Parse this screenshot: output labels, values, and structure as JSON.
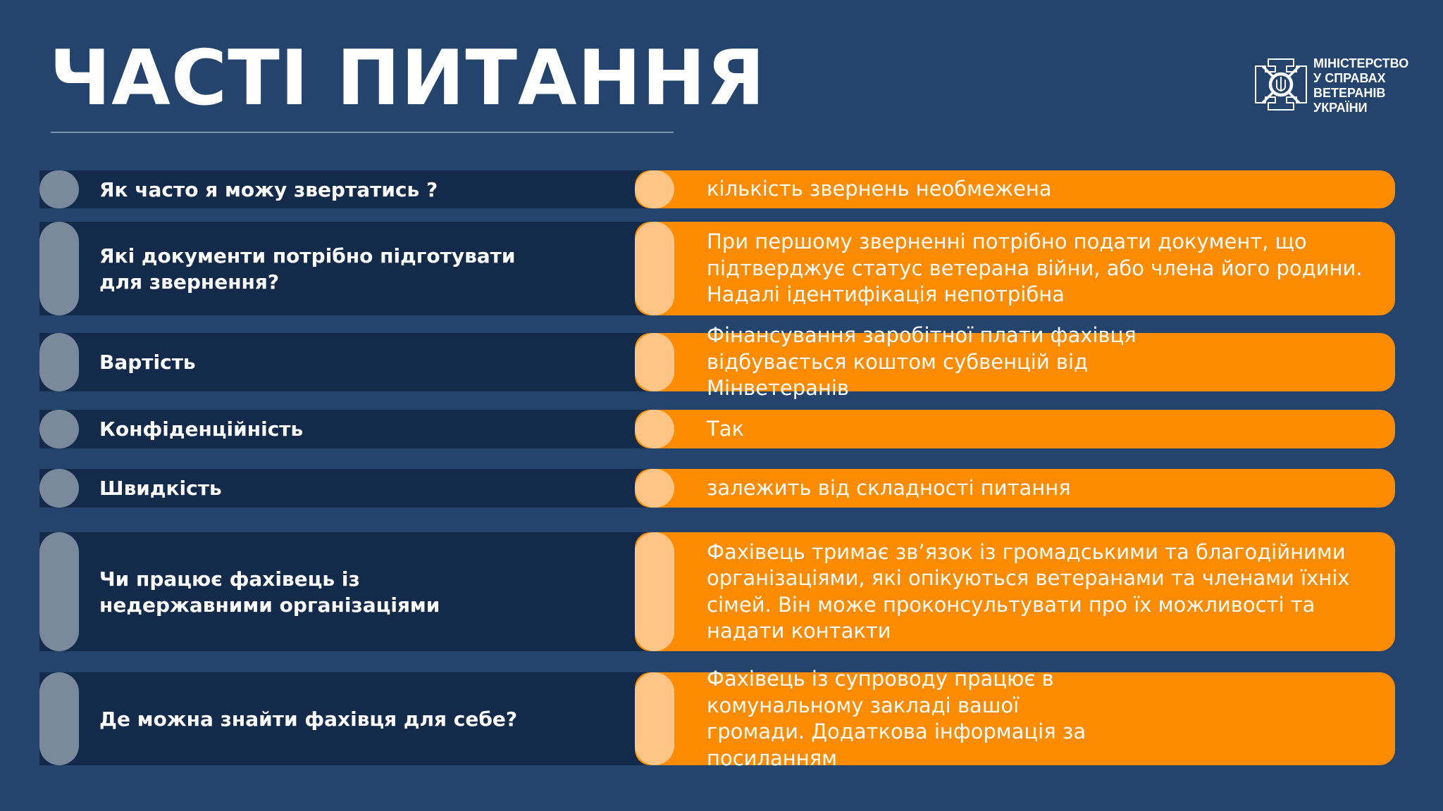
{
  "header": {
    "title": "ЧАСТІ ПИТАННЯ"
  },
  "logo": {
    "lines": [
      "МІНІСТЕРСТВО",
      "У СПРАВАХ",
      "ВЕТЕРАНІВ",
      "УКРАЇНИ"
    ]
  },
  "colors": {
    "background": "#24446e",
    "question_bar": "#132a4b",
    "question_pill": "#7a8a9c",
    "answer_bar": "#ff8b00",
    "answer_pill": "#ffc587"
  },
  "faq": [
    {
      "q": "Як часто я можу звертатись ?",
      "a": "кількість звернень необмежена"
    },
    {
      "q": "Які документи потрібно підготувати для звернення?",
      "a": "При першому зверненні потрібно подати документ, що підтверджує статус ветерана війни, або члена його родини. Надалі ідентифікація непотрібна"
    },
    {
      "q": "Вартість",
      "a": "Фінансування заробітної плати фахівця відбувається коштом субвенцій від Мінветеранів"
    },
    {
      "q": "Конфіденційність",
      "a": "Так"
    },
    {
      "q": "Швидкість",
      "a": "залежить від складності питання"
    },
    {
      "q": "Чи працює фахівець із недержавними організаціями",
      "a": "Фахівець тримає зв’язок із громадськими та благодійними організаціями, які опікуються ветеранами та членами їхніх сімей. Він може проконсультувати про їх можливості та надати контакти"
    },
    {
      "q": "Де можна знайти фахівця для себе?",
      "a": "Фахівець із супроводу працює в комунальному закладі вашої громади. Додаткова інформація за посиланням"
    }
  ]
}
